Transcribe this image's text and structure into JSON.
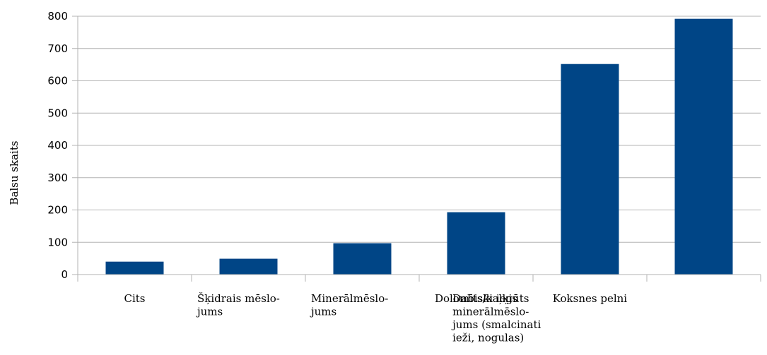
{
  "chart_data": {
    "type": "bar",
    "ylabel": "Balsu skaits",
    "xlabel": "",
    "ylim": [
      0,
      800
    ],
    "yticks": [
      0,
      100,
      200,
      300,
      400,
      500,
      600,
      700,
      800
    ],
    "grid": true,
    "categories": [
      [
        "Cits"
      ],
      [
        "Šķidrais mēslo-",
        "jums"
      ],
      [
        "Minerālmēslo-",
        "jums"
      ],
      [
        "Dolomīts/kaļķis"
      ],
      [
        "Koksnes pelni"
      ],
      [
        "Dabiski iegūts",
        "minerālmēslo-",
        "jums (smalcinati",
        "ieži, nogulas)"
      ]
    ],
    "values": [
      40,
      49,
      97,
      193,
      652,
      792
    ],
    "bar_color": "#004586"
  }
}
